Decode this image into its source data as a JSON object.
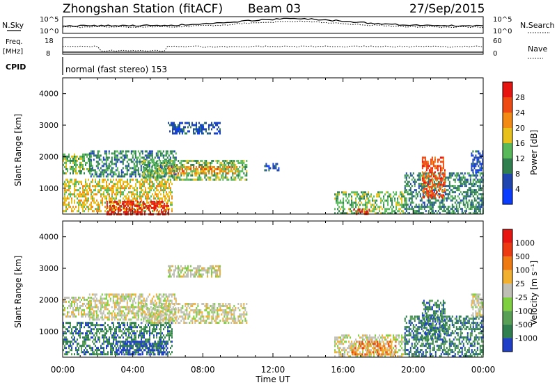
{
  "header": {
    "title": "Zhongshan Station (fitACF)",
    "beam": "Beam 03",
    "date": "27/Sep/2015"
  },
  "top_panels": {
    "nsky_label": "N.Sky",
    "nsky_ticks": [
      "10^5",
      "10^0"
    ],
    "nsearch_label": "N.Search",
    "nsearch_ticks": [
      "10^5",
      "10^0"
    ],
    "freq_label_1": "Freq.",
    "freq_label_2": "[MHz]",
    "freq_ticks": [
      "18",
      "8"
    ],
    "nave_label": "Nave",
    "nave_ticks": [
      "60",
      "0"
    ],
    "cpid_label": "CPID",
    "cpid_text": "normal (fast stereo) 153"
  },
  "chart_data": [
    {
      "type": "heatmap",
      "name": "power",
      "ylabel": "Slant Range [km]",
      "y_ticks": [
        "1000",
        "2000",
        "3000",
        "4000"
      ],
      "ylim": [
        180,
        4500
      ],
      "x_ticks": [
        "00:00",
        "04:00",
        "08:00",
        "12:00",
        "16:00",
        "20:00",
        "00:00"
      ],
      "xlim_hours": [
        0,
        24
      ],
      "colorbar_label": "Power [dB]",
      "colorbar_ticks": [
        "4",
        "8",
        "12",
        "16",
        "20",
        "24",
        "28"
      ],
      "colorbar_colors": [
        "#0a3cff",
        "#1f46b0",
        "#2f7f4f",
        "#58b95a",
        "#e8c21a",
        "#f28a14",
        "#ee4a12",
        "#e8140f"
      ],
      "echo_regions": [
        {
          "t": [
            0.0,
            1.6
          ],
          "r": [
            1500,
            2100
          ],
          "level": 3
        },
        {
          "t": [
            0.0,
            6.2
          ],
          "r": [
            250,
            1300
          ],
          "level": 4
        },
        {
          "t": [
            2.5,
            6.0
          ],
          "r": [
            200,
            600
          ],
          "level": 7
        },
        {
          "t": [
            1.5,
            6.5
          ],
          "r": [
            1400,
            2200
          ],
          "level": 2
        },
        {
          "t": [
            4.5,
            10.5
          ],
          "r": [
            1300,
            1900
          ],
          "level": 3
        },
        {
          "t": [
            6.0,
            10.0
          ],
          "r": [
            1450,
            1700
          ],
          "level": 5
        },
        {
          "t": [
            6.0,
            9.0
          ],
          "r": [
            2750,
            3100
          ],
          "level": 1
        },
        {
          "t": [
            11.5,
            12.3
          ],
          "r": [
            1600,
            1800
          ],
          "level": 1
        },
        {
          "t": [
            15.5,
            19.5
          ],
          "r": [
            200,
            900
          ],
          "level": 3
        },
        {
          "t": [
            16.5,
            17.5
          ],
          "r": [
            200,
            350
          ],
          "level": 7
        },
        {
          "t": [
            19.5,
            24.0
          ],
          "r": [
            200,
            1500
          ],
          "level": 2
        },
        {
          "t": [
            20.5,
            21.8
          ],
          "r": [
            700,
            2000
          ],
          "level": 6
        },
        {
          "t": [
            23.3,
            24.0
          ],
          "r": [
            1500,
            2200
          ],
          "level": 1
        }
      ]
    },
    {
      "type": "heatmap",
      "name": "velocity",
      "ylabel": "Slant Range [km]",
      "y_ticks": [
        "1000",
        "2000",
        "3000",
        "4000"
      ],
      "ylim": [
        180,
        4500
      ],
      "x_ticks": [
        "00:00",
        "04:00",
        "08:00",
        "12:00",
        "16:00",
        "20:00",
        "00:00"
      ],
      "xlim_hours": [
        0,
        24
      ],
      "xlabel": "Time UT",
      "colorbar_label": "Velocity [m s⁻¹]",
      "colorbar_ticks": [
        "1000",
        "500",
        "100",
        "25",
        "-25",
        "-100",
        "-500",
        "-1000"
      ],
      "colorbar_colors": [
        "#1f3fc8",
        "#2f7f4f",
        "#58a055",
        "#7fd040",
        "#bfbfb5",
        "#f2b030",
        "#f07a12",
        "#ee3a12",
        "#e8140f"
      ],
      "echo_regions": [
        {
          "t": [
            0.0,
            1.6
          ],
          "r": [
            1500,
            2100
          ],
          "level": 4
        },
        {
          "t": [
            0.0,
            6.2
          ],
          "r": [
            250,
            1300
          ],
          "level": 1
        },
        {
          "t": [
            3.0,
            6.0
          ],
          "r": [
            300,
            700
          ],
          "level": 0
        },
        {
          "t": [
            1.5,
            6.5
          ],
          "r": [
            1400,
            2200
          ],
          "level": 4
        },
        {
          "t": [
            4.5,
            10.5
          ],
          "r": [
            1300,
            1900
          ],
          "level": 4
        },
        {
          "t": [
            6.0,
            9.0
          ],
          "r": [
            2750,
            3100
          ],
          "level": 4
        },
        {
          "t": [
            15.5,
            19.5
          ],
          "r": [
            200,
            900
          ],
          "level": 4
        },
        {
          "t": [
            16.5,
            19.0
          ],
          "r": [
            300,
            700
          ],
          "level": 6
        },
        {
          "t": [
            19.5,
            24.0
          ],
          "r": [
            200,
            1500
          ],
          "level": 1
        },
        {
          "t": [
            20.5,
            21.8
          ],
          "r": [
            700,
            2000
          ],
          "level": 1
        },
        {
          "t": [
            23.3,
            24.0
          ],
          "r": [
            1500,
            2200
          ],
          "level": 4
        }
      ]
    }
  ]
}
